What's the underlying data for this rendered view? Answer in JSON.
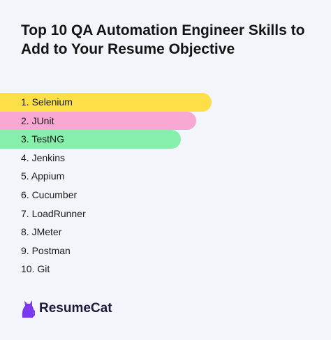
{
  "title": "Top 10 QA Automation Engineer Skills to Add to Your Resume Objective",
  "items": [
    "1. Selenium",
    "2. JUnit",
    "3. TestNG",
    "4. Jenkins",
    "5. Appium",
    "6. Cucumber",
    "7. LoadRunner",
    "8. JMeter",
    "9. Postman",
    "10. Git"
  ],
  "logo": "ResumeCat"
}
